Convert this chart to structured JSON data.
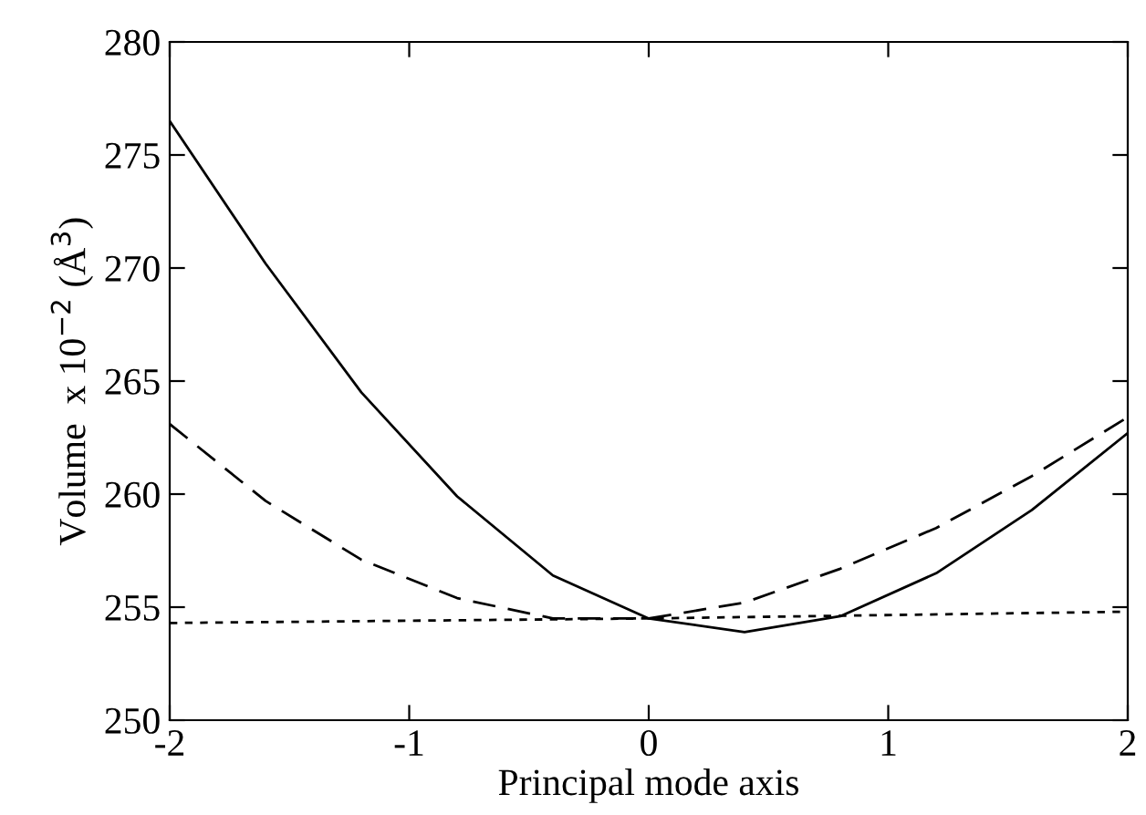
{
  "chart_data": {
    "type": "line",
    "xlabel": "Principal mode axis",
    "ylabel": "Volume  x 10$^{−2}$ (Å$^{3}$)",
    "xlim": [
      -2,
      2
    ],
    "ylim": [
      250,
      280
    ],
    "xticks": [
      -2,
      -1,
      0,
      1,
      2
    ],
    "yticks": [
      250,
      255,
      260,
      265,
      270,
      275,
      280
    ],
    "grid": false,
    "legend": false,
    "marker": "none",
    "series": [
      {
        "color": "#000000",
        "line_style": "solid",
        "x": [
          -2,
          -1.6,
          -1.2,
          -0.8,
          -0.4,
          0,
          0.4,
          0.8,
          1.2,
          1.6,
          2
        ],
        "values": [
          276.5,
          270.2,
          264.5,
          259.9,
          256.4,
          254.5,
          253.9,
          254.6,
          256.5,
          259.3,
          262.7
        ]
      },
      {
        "color": "#000000",
        "line_style": "dashed",
        "x": [
          -2,
          -1.6,
          -1.2,
          -0.8,
          -0.4,
          0,
          0.4,
          0.8,
          1.2,
          1.6,
          2
        ],
        "values": [
          263.1,
          259.7,
          257.1,
          255.4,
          254.5,
          254.5,
          255.2,
          256.7,
          258.5,
          260.8,
          263.4
        ]
      },
      {
        "color": "#000000",
        "line_style": "dotted",
        "x": [
          -2,
          0,
          2
        ],
        "values": [
          254.3,
          254.5,
          254.8
        ]
      }
    ]
  }
}
